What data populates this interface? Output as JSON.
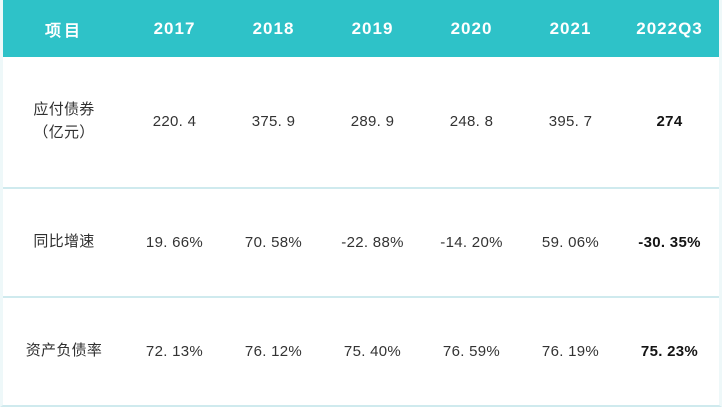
{
  "colors": {
    "header_bg": "#2ec2c8",
    "header_text": "#ffffff",
    "row_separator": "#cfeaee",
    "body_text": "#333333"
  },
  "table": {
    "columns": [
      "项目",
      "2017",
      "2018",
      "2019",
      "2020",
      "2021",
      "2022Q3"
    ],
    "rows": [
      {
        "label": "应付债券\n（亿元）",
        "values": [
          "220. 4",
          "375. 9",
          "289. 9",
          "248. 8",
          "395. 7",
          "274"
        ]
      },
      {
        "label": "同比增速",
        "values": [
          "19. 66%",
          "70. 58%",
          "-22. 88%",
          "-14. 20%",
          "59. 06%",
          "-30. 35%"
        ]
      },
      {
        "label": "资产负债率",
        "values": [
          "72. 13%",
          "76. 12%",
          "75. 40%",
          "76. 59%",
          "76. 19%",
          "75. 23%"
        ]
      }
    ]
  },
  "chart_data": {
    "type": "table",
    "title": "",
    "columns": [
      "项目",
      "2017",
      "2018",
      "2019",
      "2020",
      "2021",
      "2022Q3"
    ],
    "rows": [
      {
        "label": "应付债券（亿元）",
        "values": [
          220.4,
          375.9,
          289.9,
          248.8,
          395.7,
          274
        ]
      },
      {
        "label": "同比增速",
        "unit": "%",
        "values": [
          19.66,
          70.58,
          -22.88,
          -14.2,
          59.06,
          -30.35
        ]
      },
      {
        "label": "资产负债率",
        "unit": "%",
        "values": [
          72.13,
          76.12,
          75.4,
          76.59,
          76.19,
          75.23
        ]
      }
    ]
  }
}
